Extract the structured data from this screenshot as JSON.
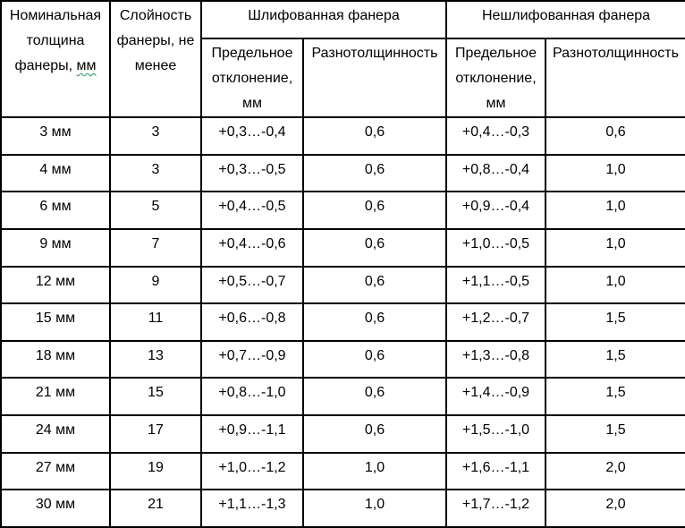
{
  "document": {
    "background_color": "#ffffff",
    "border_color": "#000000",
    "text_color": "#000000",
    "squiggle_color": "#00a550"
  },
  "table": {
    "header": {
      "thickness_label": "Номинальная толщина фанеры,",
      "thickness_unit": "мм",
      "plies": "Слойность фанеры, не менее",
      "group_sanded": "Шлифованная фанера",
      "group_unsanded": "Нешлифованная фанера",
      "sub_deviation": "Предельное отклонение, мм",
      "sub_variation": "Разнотолщинность"
    },
    "rows": [
      {
        "thickness": "3 мм",
        "plies": "3",
        "sanded_dev": "+0,3…-0,4",
        "sanded_var": "0,6",
        "unsanded_dev": "+0,4…-0,3",
        "unsanded_var": "0,6"
      },
      {
        "thickness": "4 мм",
        "plies": "3",
        "sanded_dev": "+0,3…-0,5",
        "sanded_var": "0,6",
        "unsanded_dev": "+0,8…-0,4",
        "unsanded_var": "1,0"
      },
      {
        "thickness": "6 мм",
        "plies": "5",
        "sanded_dev": "+0,4…-0,5",
        "sanded_var": "0,6",
        "unsanded_dev": "+0,9…-0,4",
        "unsanded_var": "1,0"
      },
      {
        "thickness": "9 мм",
        "plies": "7",
        "sanded_dev": "+0,4…-0,6",
        "sanded_var": "0,6",
        "unsanded_dev": "+1,0…-0,5",
        "unsanded_var": "1,0"
      },
      {
        "thickness": "12 мм",
        "plies": "9",
        "sanded_dev": "+0,5…-0,7",
        "sanded_var": "0,6",
        "unsanded_dev": "+1,1…-0,5",
        "unsanded_var": "1,0"
      },
      {
        "thickness": "15 мм",
        "plies": "11",
        "sanded_dev": "+0,6…-0,8",
        "sanded_var": "0,6",
        "unsanded_dev": "+1,2…-0,7",
        "unsanded_var": "1,5"
      },
      {
        "thickness": "18 мм",
        "plies": "13",
        "sanded_dev": "+0,7…-0,9",
        "sanded_var": "0,6",
        "unsanded_dev": "+1,3…-0,8",
        "unsanded_var": "1,5"
      },
      {
        "thickness": "21 мм",
        "plies": "15",
        "sanded_dev": "+0,8…-1,0",
        "sanded_var": "0,6",
        "unsanded_dev": "+1,4…-0,9",
        "unsanded_var": "1,5"
      },
      {
        "thickness": "24 мм",
        "plies": "17",
        "sanded_dev": "+0,9…-1,1",
        "sanded_var": "0,6",
        "unsanded_dev": "+1,5…-1,0",
        "unsanded_var": "1,5"
      },
      {
        "thickness": "27 мм",
        "plies": "19",
        "sanded_dev": "+1,0…-1,2",
        "sanded_var": "1,0",
        "unsanded_dev": "+1,6…-1,1",
        "unsanded_var": "2,0"
      },
      {
        "thickness": "30 мм",
        "plies": "21",
        "sanded_dev": "+1,1…-1,3",
        "sanded_var": "1,0",
        "unsanded_dev": "+1,7…-1,2",
        "unsanded_var": "2,0"
      }
    ]
  }
}
